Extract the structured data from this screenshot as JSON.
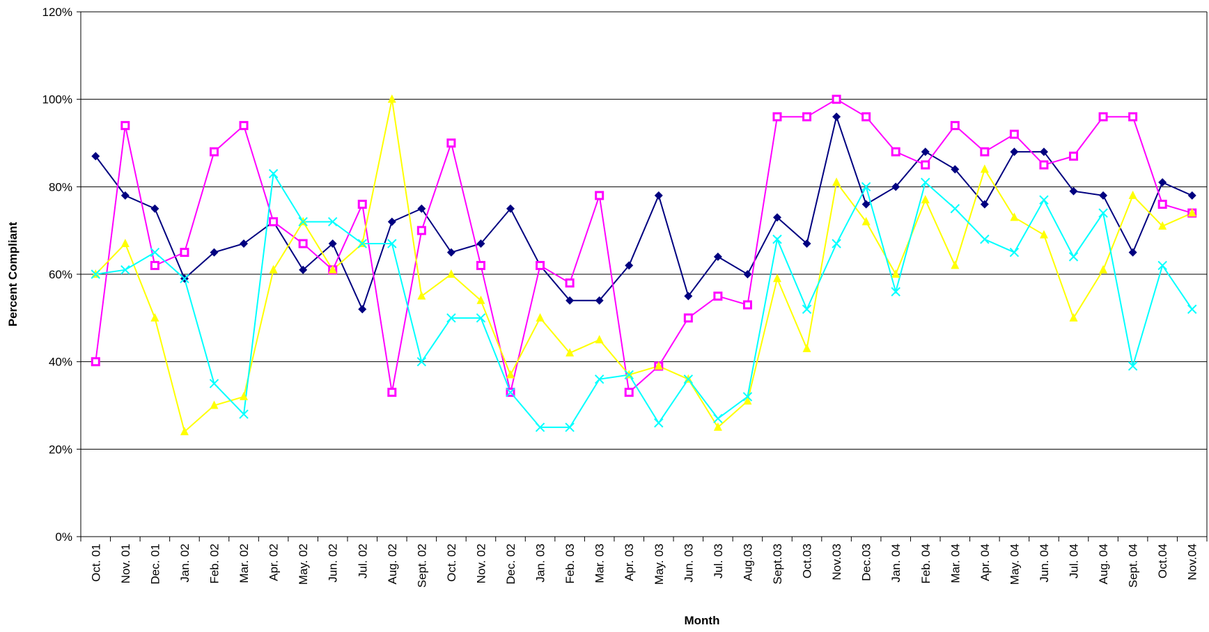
{
  "chart_data": {
    "type": "line",
    "x_label": "Month",
    "y_label": "Percent Compliant",
    "categories": [
      "Oct. 01",
      "Nov. 01",
      "Dec. 01",
      "Jan. 02",
      "Feb. 02",
      "Mar. 02",
      "Apr. 02",
      "May. 02",
      "Jun. 02",
      "Jul. 02",
      "Aug. 02",
      "Sept. 02",
      "Oct. 02",
      "Nov. 02",
      "Dec. 02",
      "Jan. 03",
      "Feb. 03",
      "Mar. 03",
      "Apr. 03",
      "May. 03",
      "Jun. 03",
      "Jul. 03",
      "Aug.03",
      "Sept.03",
      "Oct.03",
      "Nov.03",
      "Dec.03",
      "Jan. 04",
      "Feb. 04",
      "Mar. 04",
      "Apr. 04",
      "May. 04",
      "Jun. 04",
      "Jul. 04",
      "Aug. 04",
      "Sept. 04",
      "Oct.04",
      "Nov.04"
    ],
    "series": [
      {
        "color": "#000080",
        "marker": "diamond",
        "values": [
          87,
          78,
          75,
          59,
          65,
          67,
          72,
          61,
          67,
          52,
          72,
          75,
          65,
          67,
          75,
          62,
          54,
          54,
          62,
          78,
          55,
          64,
          60,
          73,
          67,
          96,
          76,
          80,
          88,
          84,
          76,
          88,
          88,
          79,
          78,
          65,
          81,
          78
        ]
      },
      {
        "color": "#ff00ff",
        "marker": "square",
        "values": [
          40,
          94,
          62,
          65,
          88,
          94,
          72,
          67,
          61,
          76,
          33,
          70,
          90,
          62,
          33,
          62,
          58,
          78,
          33,
          39,
          50,
          55,
          53,
          96,
          96,
          100,
          96,
          88,
          85,
          94,
          88,
          92,
          85,
          87,
          96,
          96,
          76,
          74
        ]
      },
      {
        "color": "#ffff00",
        "marker": "triangle",
        "values": [
          60,
          67,
          50,
          24,
          30,
          32,
          61,
          72,
          61,
          67,
          100,
          55,
          60,
          54,
          37,
          50,
          42,
          45,
          37,
          39,
          36,
          25,
          31,
          59,
          43,
          81,
          72,
          60,
          77,
          62,
          84,
          73,
          69,
          50,
          61,
          78,
          71,
          74
        ]
      },
      {
        "color": "#00ffff",
        "marker": "x",
        "values": [
          60,
          61,
          65,
          59,
          35,
          28,
          83,
          72,
          72,
          67,
          67,
          40,
          50,
          50,
          33,
          25,
          25,
          36,
          37,
          26,
          36,
          27,
          32,
          68,
          52,
          67,
          80,
          56,
          81,
          75,
          68,
          65,
          77,
          64,
          74,
          39,
          62,
          52
        ]
      }
    ],
    "ylim": [
      0,
      120
    ],
    "yticks": [
      {
        "value": 0,
        "label": "0%"
      },
      {
        "value": 20,
        "label": "20%"
      },
      {
        "value": 40,
        "label": "40%"
      },
      {
        "value": 60,
        "label": "60%"
      },
      {
        "value": 80,
        "label": "80%"
      },
      {
        "value": 100,
        "label": "100%"
      },
      {
        "value": 120,
        "label": "120%"
      }
    ],
    "grid": true
  }
}
